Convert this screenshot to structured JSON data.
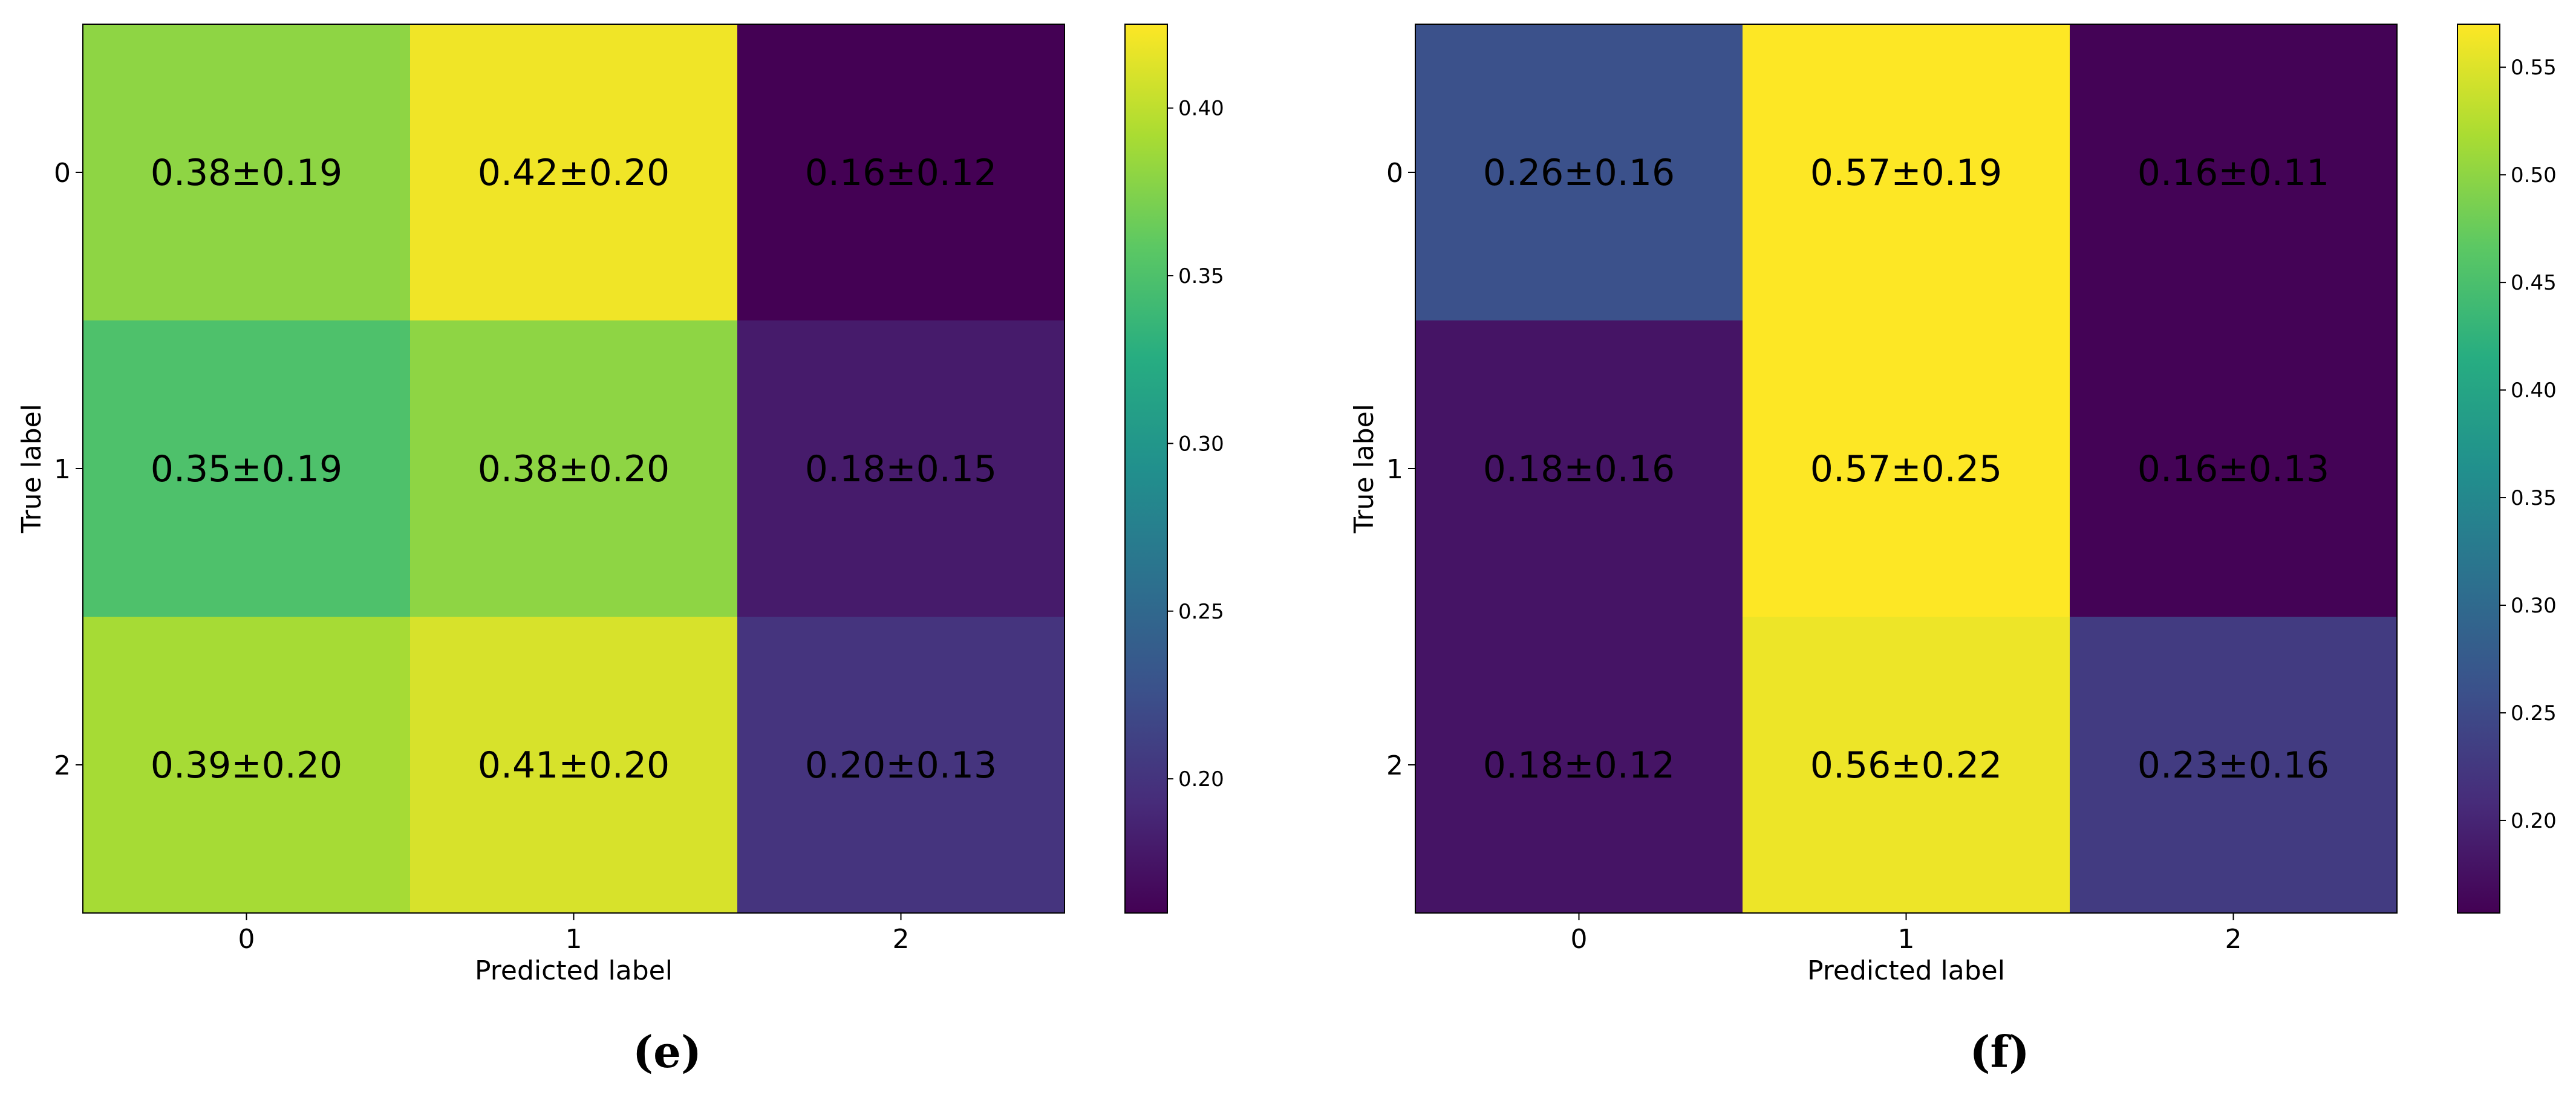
{
  "chart_data": [
    {
      "type": "heatmap",
      "panel_caption": "(e)",
      "xlabel": "Predicted label",
      "ylabel": "True label",
      "x_categories": [
        "0",
        "1",
        "2"
      ],
      "y_categories": [
        "0",
        "1",
        "2"
      ],
      "values": [
        [
          0.38,
          0.42,
          0.16
        ],
        [
          0.35,
          0.38,
          0.18
        ],
        [
          0.39,
          0.41,
          0.2
        ]
      ],
      "cell_labels": [
        [
          "0.38±0.19",
          "0.42±0.20",
          "0.16±0.12"
        ],
        [
          "0.35±0.19",
          "0.38±0.20",
          "0.18±0.15"
        ],
        [
          "0.39±0.20",
          "0.41±0.20",
          "0.20±0.13"
        ]
      ],
      "colorbar": {
        "range": [
          0.16,
          0.425
        ],
        "ticks": [
          0.2,
          0.25,
          0.3,
          0.35,
          0.4
        ],
        "tick_labels": [
          "0.20",
          "0.25",
          "0.30",
          "0.35",
          "0.40"
        ]
      },
      "colormap": "viridis"
    },
    {
      "type": "heatmap",
      "panel_caption": "(f)",
      "xlabel": "Predicted label",
      "ylabel": "True label",
      "x_categories": [
        "0",
        "1",
        "2"
      ],
      "y_categories": [
        "0",
        "1",
        "2"
      ],
      "values": [
        [
          0.26,
          0.57,
          0.16
        ],
        [
          0.18,
          0.57,
          0.16
        ],
        [
          0.18,
          0.56,
          0.23
        ]
      ],
      "cell_labels": [
        [
          "0.26±0.16",
          "0.57±0.19",
          "0.16±0.11"
        ],
        [
          "0.18±0.16",
          "0.57±0.25",
          "0.16±0.13"
        ],
        [
          "0.18±0.12",
          "0.56±0.22",
          "0.23±0.16"
        ]
      ],
      "colorbar": {
        "range": [
          0.157,
          0.57
        ],
        "ticks": [
          0.2,
          0.25,
          0.3,
          0.35,
          0.4,
          0.45,
          0.5,
          0.55
        ],
        "tick_labels": [
          "0.20",
          "0.25",
          "0.30",
          "0.35",
          "0.40",
          "0.45",
          "0.50",
          "0.55"
        ]
      },
      "colormap": "viridis"
    }
  ]
}
